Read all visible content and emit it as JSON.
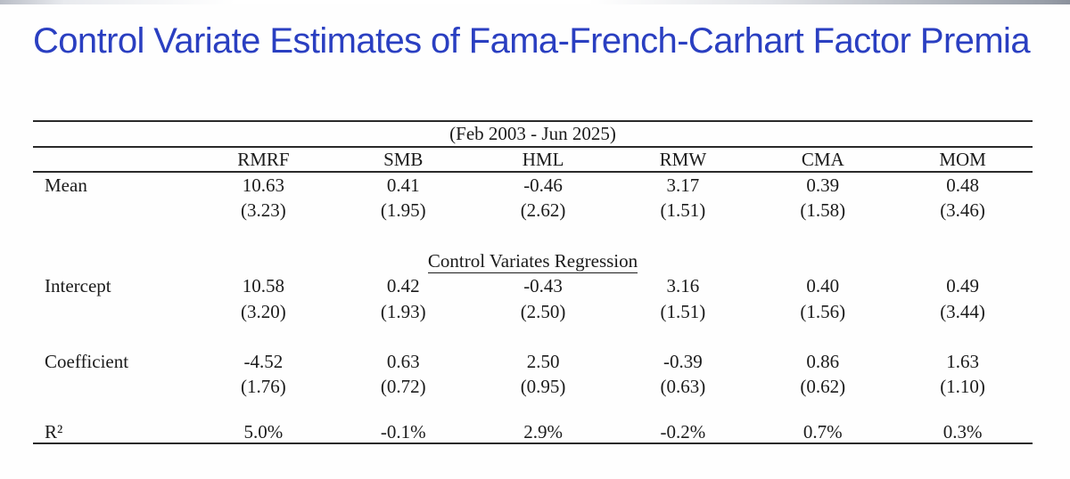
{
  "page_title": "Control Variate Estimates of Fama-French-Carhart Factor Premia",
  "title_color": "#2a3fc1",
  "table": {
    "period_header": "(Feb 2003 - Jun 2025)",
    "columns": [
      "RMRF",
      "SMB",
      "HML",
      "RMW",
      "CMA",
      "MOM"
    ],
    "section_heading": "Control Variates Regression",
    "rows": {
      "mean": {
        "label": "Mean",
        "values": [
          "10.63",
          "0.41",
          "-0.46",
          "3.17",
          "0.39",
          "0.48"
        ],
        "se": [
          "(3.23)",
          "(1.95)",
          "(2.62)",
          "(1.51)",
          "(1.58)",
          "(3.46)"
        ]
      },
      "intercept": {
        "label": "Intercept",
        "values": [
          "10.58",
          "0.42",
          "-0.43",
          "3.16",
          "0.40",
          "0.49"
        ],
        "se": [
          "(3.20)",
          "(1.93)",
          "(2.50)",
          "(1.51)",
          "(1.56)",
          "(3.44)"
        ]
      },
      "coefficient": {
        "label": "Coefficient",
        "values": [
          "-4.52",
          "0.63",
          "2.50",
          "-0.39",
          "0.86",
          "1.63"
        ],
        "se": [
          "(1.76)",
          "(0.72)",
          "(0.95)",
          "(0.63)",
          "(0.62)",
          "(1.10)"
        ]
      },
      "r2": {
        "label": "R²",
        "values": [
          "5.0%",
          "-0.1%",
          "2.9%",
          "-0.2%",
          "0.7%",
          "0.3%"
        ]
      }
    }
  }
}
